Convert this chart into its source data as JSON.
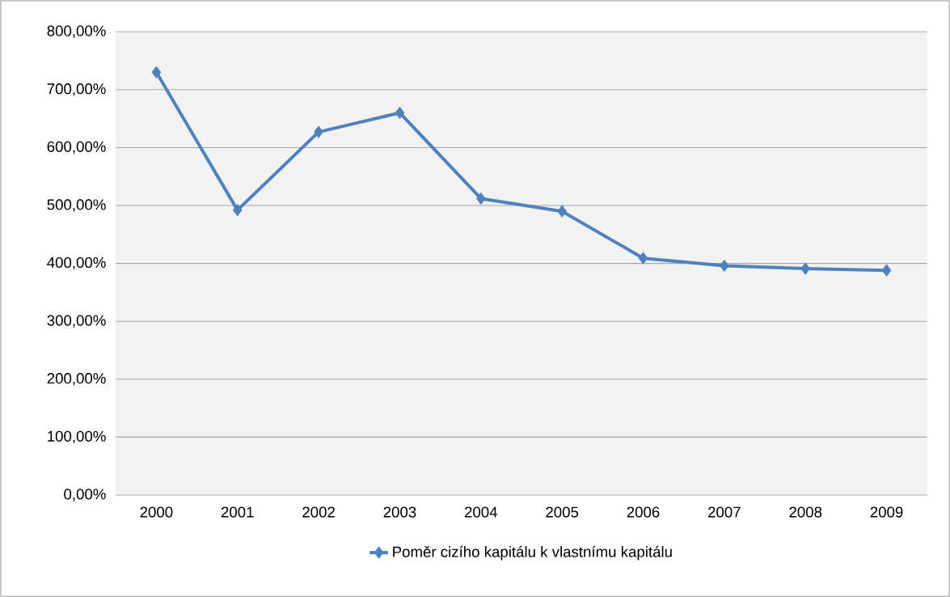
{
  "chart_data": {
    "type": "line",
    "categories": [
      "2000",
      "2001",
      "2002",
      "2003",
      "2004",
      "2005",
      "2006",
      "2007",
      "2008",
      "2009"
    ],
    "series": [
      {
        "name": "Poměr cizího kapitálu k vlastnímu kapitálu",
        "color": "#4f81bd",
        "values": [
          730,
          492,
          627,
          660,
          512,
          490,
          409,
          396,
          391,
          388
        ]
      }
    ],
    "ylim": [
      0,
      800
    ],
    "yticks": [
      {
        "value": 0,
        "label": "0,00%"
      },
      {
        "value": 100,
        "label": "100,00%"
      },
      {
        "value": 200,
        "label": "200,00%"
      },
      {
        "value": 300,
        "label": "300,00%"
      },
      {
        "value": 400,
        "label": "400,00%"
      },
      {
        "value": 500,
        "label": "500,00%"
      },
      {
        "value": 600,
        "label": "600,00%"
      },
      {
        "value": 700,
        "label": "700,00%"
      },
      {
        "value": 800,
        "label": "800,00%"
      }
    ],
    "grid": "y",
    "legend": "bottom",
    "marker": "diamond",
    "line_style": "solid"
  }
}
